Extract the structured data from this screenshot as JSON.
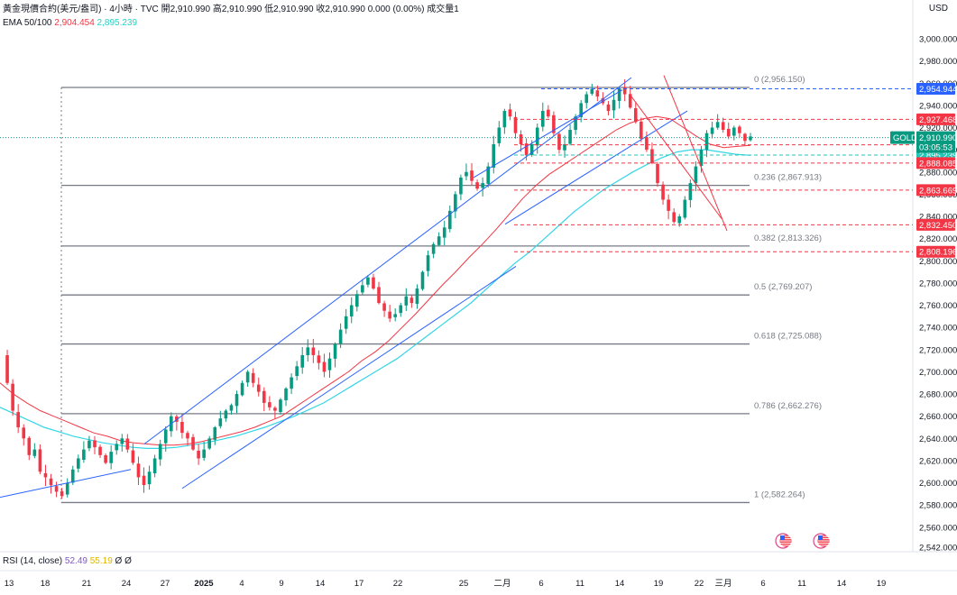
{
  "header": {
    "title": "黃金現價合約(美元/盎司) · 4小時 · TVC",
    "open_label": "開",
    "open": "2,910.990",
    "high_label": "高",
    "high": "2,910.990",
    "low_label": "低",
    "low": "2,910.990",
    "close_label": "收",
    "close": "2,910.990",
    "change": "0.000 (0.00%)",
    "volume_label": "成交量",
    "volume": "1",
    "ema_label": "EMA 50/100",
    "ema50": "2,904.454",
    "ema100": "2,895.239"
  },
  "currency": "USD",
  "rsi": {
    "label": "RSI (14, close)",
    "v1": "52.49",
    "v2": "55.19",
    "v3": "Ø",
    "v4": "Ø"
  },
  "colors": {
    "up": "#089981",
    "down": "#f23645",
    "ema50": "#f23645",
    "ema100": "#33d6e6",
    "channel": "#2962ff",
    "fib": "#787b86"
  },
  "chart_data": {
    "type": "candlestick",
    "ylim": [
      2535,
      3020
    ],
    "y_ticks": [
      "3,000.000",
      "2,980.000",
      "2,960.000",
      "2,940.000",
      "2,920.000",
      "2,900.000",
      "2,880.000",
      "2,860.000",
      "2,840.000",
      "2,820.000",
      "2,800.000",
      "2,780.000",
      "2,760.000",
      "2,740.000",
      "2,720.000",
      "2,700.000",
      "2,680.000",
      "2,660.000",
      "2,640.000",
      "2,620.000",
      "2,600.000",
      "2,580.000",
      "2,560.000",
      "2,542.000"
    ],
    "x_ticks": [
      "13",
      "18",
      "21",
      "24",
      "27",
      "2025",
      "4",
      "9",
      "14",
      "17",
      "22",
      "25",
      "二月",
      "6",
      "11",
      "14",
      "19",
      "22",
      "三月",
      "6",
      "11",
      "14",
      "19"
    ],
    "fib_levels": [
      {
        "label": "0 (2,956.150)",
        "value": 2956.15
      },
      {
        "label": "0.236 (2,867.913)",
        "value": 2867.913
      },
      {
        "label": "0.382 (2,813.326)",
        "value": 2813.326
      },
      {
        "label": "0.5 (2,769.207)",
        "value": 2769.207
      },
      {
        "label": "0.618 (2,725.088)",
        "value": 2725.088
      },
      {
        "label": "0.786 (2,662.276)",
        "value": 2662.276
      },
      {
        "label": "1 (2,582.264)",
        "value": 2582.264
      }
    ],
    "price_tags": [
      {
        "label": "2,954.944",
        "value": 2954.944,
        "color": "#2962ff"
      },
      {
        "label": "2,927.468",
        "value": 2927.468,
        "color": "#f23645"
      },
      {
        "label": "2,904.454",
        "value": 2904.454,
        "color": "#f23645"
      },
      {
        "label": "2,895.239",
        "value": 2895.239,
        "color": "#22c7b8"
      },
      {
        "label": "2,888.085",
        "value": 2888.085,
        "color": "#f23645"
      },
      {
        "label": "2,863.669",
        "value": 2863.669,
        "color": "#f23645"
      },
      {
        "label": "2,832.450",
        "value": 2832.45,
        "color": "#f23645"
      },
      {
        "label": "2,808.196",
        "value": 2808.196,
        "color": "#f23645"
      }
    ],
    "current": {
      "symbol": "GOLD",
      "price": "2,910.990",
      "countdown": "03:05:53",
      "value": 2910.99
    },
    "close_path": [
      2715,
      2690,
      2665,
      2650,
      2640,
      2625,
      2630,
      2610,
      2605,
      2598,
      2592,
      2588,
      2600,
      2612,
      2622,
      2630,
      2638,
      2632,
      2625,
      2618,
      2628,
      2635,
      2640,
      2630,
      2618,
      2605,
      2598,
      2610,
      2622,
      2635,
      2648,
      2660,
      2655,
      2645,
      2640,
      2630,
      2622,
      2630,
      2640,
      2650,
      2658,
      2665,
      2670,
      2680,
      2690,
      2700,
      2690,
      2682,
      2672,
      2668,
      2665,
      2675,
      2685,
      2695,
      2705,
      2715,
      2722,
      2715,
      2708,
      2700,
      2712,
      2725,
      2738,
      2750,
      2760,
      2770,
      2778,
      2785,
      2775,
      2762,
      2755,
      2748,
      2752,
      2760,
      2768,
      2762,
      2775,
      2790,
      2805,
      2815,
      2822,
      2830,
      2845,
      2860,
      2875,
      2880,
      2872,
      2865,
      2870,
      2885,
      2905,
      2920,
      2935,
      2930,
      2915,
      2905,
      2895,
      2905,
      2920,
      2935,
      2930,
      2915,
      2900,
      2905,
      2918,
      2930,
      2942,
      2950,
      2955,
      2948,
      2942,
      2935,
      2945,
      2955,
      2950,
      2938,
      2925,
      2910,
      2900,
      2888,
      2870,
      2855,
      2845,
      2835,
      2840,
      2855,
      2870,
      2885,
      2900,
      2915,
      2920,
      2925,
      2918,
      2912,
      2920,
      2915,
      2908,
      2912
    ],
    "ema50_path": [
      2690,
      2680,
      2672,
      2665,
      2660,
      2655,
      2650,
      2645,
      2642,
      2638,
      2636,
      2635,
      2634,
      2634,
      2635,
      2637,
      2640,
      2643,
      2646,
      2650,
      2655,
      2660,
      2668,
      2676,
      2684,
      2692,
      2700,
      2710,
      2718,
      2728,
      2740,
      2752,
      2765,
      2778,
      2790,
      2803,
      2815,
      2828,
      2842,
      2856,
      2868,
      2878,
      2886,
      2894,
      2902,
      2910,
      2918,
      2924,
      2928,
      2930,
      2928,
      2920,
      2912,
      2905,
      2902,
      2903,
      2904
    ],
    "ema100_path": [
      2668,
      2662,
      2656,
      2650,
      2646,
      2642,
      2639,
      2636,
      2634,
      2632,
      2631,
      2631,
      2632,
      2634,
      2636,
      2639,
      2642,
      2646,
      2650,
      2655,
      2660,
      2666,
      2672,
      2680,
      2688,
      2696,
      2704,
      2712,
      2722,
      2732,
      2742,
      2752,
      2762,
      2774,
      2786,
      2798,
      2808,
      2820,
      2832,
      2844,
      2854,
      2864,
      2872,
      2880,
      2887,
      2893,
      2898,
      2900,
      2900,
      2898,
      2896,
      2895
    ]
  }
}
